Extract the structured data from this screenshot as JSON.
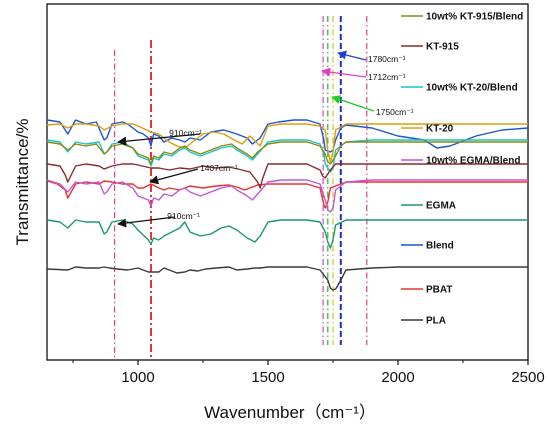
{
  "chart_data": {
    "type": "line",
    "xlabel": "Wavenumber（cm⁻¹）",
    "ylabel": "Transmittance/%",
    "xlim": [
      650,
      2500
    ],
    "x_ticks": [
      "1000",
      "1500",
      "2000",
      "2500"
    ],
    "grid": false,
    "legend_placement": "right, next to each curve",
    "series": [
      {
        "name": "PLA",
        "color": "#3a3a3a",
        "x": [
          650,
          730,
          760,
          800,
          850,
          870,
          890,
          920,
          960,
          1000,
          1040,
          1060,
          1080,
          1100,
          1130,
          1150,
          1180,
          1200,
          1230,
          1260,
          1300,
          1350,
          1380,
          1420,
          1450,
          1470,
          1500,
          1550,
          1600,
          1650,
          1700,
          1730,
          1740,
          1750,
          1760,
          1770,
          1800,
          1900,
          2000,
          2100,
          2200,
          2300,
          2400,
          2500
        ],
        "y": [
          91,
          90,
          93,
          92,
          92,
          93,
          92,
          91,
          90,
          92,
          88,
          88,
          88,
          92,
          89,
          87,
          88,
          90,
          89,
          91,
          92,
          93,
          90,
          91,
          92,
          92,
          93,
          93,
          93,
          93,
          90,
          80,
          72,
          70,
          71,
          75,
          90,
          92,
          93,
          93,
          93,
          93,
          93,
          93
        ]
      },
      {
        "name": "PBAT",
        "color": "#e8332a",
        "x": [
          650,
          690,
          720,
          730,
          760,
          800,
          850,
          870,
          900,
          940,
          980,
          1000,
          1020,
          1050,
          1080,
          1100,
          1120,
          1160,
          1200,
          1250,
          1300,
          1350,
          1380,
          1410,
          1460,
          1500,
          1550,
          1600,
          1650,
          1700,
          1715,
          1720,
          1730,
          1740,
          1800,
          1900,
          2000,
          2100,
          2200,
          2300,
          2400,
          2500
        ],
        "y": [
          179,
          176,
          170,
          162,
          176,
          178,
          176,
          179,
          178,
          176,
          176,
          172,
          172,
          176,
          172,
          170,
          172,
          170,
          174,
          172,
          174,
          175,
          173,
          170,
          175,
          176,
          176,
          176,
          176,
          172,
          155,
          152,
          158,
          172,
          178,
          178,
          178,
          178,
          178,
          178,
          178,
          178
        ]
      },
      {
        "name": "Blend",
        "color": "#1b55d6",
        "x": [
          650,
          700,
          730,
          760,
          800,
          840,
          870,
          880,
          900,
          940,
          960,
          1000,
          1020,
          1040,
          1050,
          1060,
          1080,
          1100,
          1130,
          1160,
          1180,
          1200,
          1240,
          1280,
          1330,
          1380,
          1420,
          1440,
          1470,
          1500,
          1540,
          1600,
          1650,
          1700,
          1715,
          1720,
          1740,
          1750,
          1760,
          1780,
          1800,
          1900,
          2000,
          2100,
          2150,
          2200,
          2300,
          2400,
          2500
        ],
        "y": [
          240,
          238,
          226,
          240,
          236,
          238,
          220,
          222,
          236,
          238,
          236,
          228,
          226,
          222,
          214,
          226,
          224,
          218,
          222,
          220,
          218,
          222,
          220,
          228,
          230,
          226,
          222,
          216,
          222,
          236,
          238,
          240,
          240,
          236,
          220,
          210,
          208,
          210,
          220,
          232,
          235,
          232,
          224,
          220,
          212,
          214,
          224,
          230,
          232
        ]
      },
      {
        "name": "EGMA",
        "color": "#1a9a6a",
        "x": [
          650,
          700,
          730,
          760,
          800,
          850,
          870,
          880,
          900,
          940,
          980,
          1000,
          1040,
          1050,
          1060,
          1080,
          1100,
          1130,
          1160,
          1180,
          1200,
          1240,
          1280,
          1320,
          1350,
          1380,
          1420,
          1450,
          1470,
          1500,
          1550,
          1600,
          1650,
          1700,
          1720,
          1730,
          1740,
          1750,
          1760,
          1800,
          1900,
          2000,
          2100,
          2200,
          2300,
          2400,
          2500
        ],
        "y": [
          140,
          138,
          132,
          140,
          138,
          138,
          126,
          128,
          138,
          140,
          136,
          130,
          120,
          116,
          122,
          120,
          124,
          128,
          132,
          138,
          128,
          124,
          126,
          132,
          134,
          130,
          122,
          118,
          124,
          138,
          140,
          140,
          140,
          138,
          128,
          118,
          112,
          120,
          135,
          140,
          140,
          140,
          140,
          140,
          140,
          140,
          140
        ]
      },
      {
        "name": "10wt% EGMA/Blend",
        "color": "#c257d6",
        "x": [
          650,
          700,
          730,
          760,
          800,
          850,
          870,
          880,
          900,
          940,
          980,
          1000,
          1040,
          1050,
          1060,
          1080,
          1100,
          1130,
          1160,
          1180,
          1200,
          1240,
          1280,
          1320,
          1360,
          1380,
          1420,
          1440,
          1460,
          1500,
          1550,
          1600,
          1650,
          1700,
          1720,
          1730,
          1740,
          1750,
          1760,
          1800,
          1900,
          2000,
          2100,
          2200,
          2300,
          2400,
          2500
        ],
        "y": [
          180,
          176,
          168,
          178,
          176,
          178,
          166,
          168,
          176,
          178,
          172,
          164,
          160,
          154,
          162,
          160,
          166,
          164,
          170,
          172,
          168,
          164,
          168,
          172,
          174,
          170,
          164,
          160,
          166,
          178,
          180,
          180,
          180,
          176,
          160,
          150,
          148,
          152,
          170,
          178,
          180,
          180,
          180,
          180,
          180,
          180,
          180
        ]
      },
      {
        "name": "KT-20",
        "color": "#d8a010",
        "x": [
          650,
          700,
          730,
          760,
          800,
          850,
          870,
          900,
          940,
          980,
          1000,
          1050,
          1080,
          1120,
          1150,
          1180,
          1210,
          1250,
          1290,
          1330,
          1370,
          1400,
          1430,
          1470,
          1500,
          1550,
          1600,
          1650,
          1700,
          1720,
          1730,
          1740,
          1750,
          1760,
          1800,
          1900,
          2000,
          2100,
          2200,
          2300,
          2400,
          2500
        ],
        "y": [
          235,
          236,
          232,
          236,
          236,
          234,
          230,
          234,
          236,
          236,
          234,
          228,
          226,
          218,
          214,
          212,
          218,
          226,
          228,
          226,
          220,
          216,
          224,
          214,
          234,
          236,
          236,
          236,
          234,
          230,
          210,
          198,
          208,
          230,
          236,
          236,
          236,
          236,
          236,
          236,
          236,
          236
        ]
      },
      {
        "name": "10wt% KT-20/Blend",
        "color": "#1ac4c4",
        "x": [
          650,
          700,
          730,
          760,
          800,
          850,
          870,
          880,
          900,
          940,
          980,
          1000,
          1040,
          1050,
          1060,
          1080,
          1100,
          1130,
          1160,
          1180,
          1200,
          1240,
          1280,
          1320,
          1360,
          1380,
          1420,
          1440,
          1460,
          1500,
          1550,
          1600,
          1650,
          1700,
          1715,
          1720,
          1740,
          1750,
          1760,
          1800,
          1900,
          2000,
          2100,
          2200,
          2300,
          2400,
          2500
        ],
        "y": [
          220,
          218,
          208,
          218,
          216,
          218,
          206,
          208,
          216,
          218,
          212,
          204,
          200,
          194,
          202,
          200,
          206,
          204,
          210,
          212,
          208,
          204,
          208,
          212,
          214,
          210,
          204,
          200,
          206,
          218,
          220,
          220,
          220,
          216,
          206,
          196,
          188,
          192,
          210,
          218,
          220,
          220,
          220,
          220,
          220,
          220,
          220
        ]
      },
      {
        "name": "KT-915",
        "color": "#8a2b2b",
        "x": [
          650,
          700,
          720,
          730,
          760,
          800,
          850,
          870,
          900,
          940,
          980,
          1000,
          1050,
          1080,
          1120,
          1160,
          1200,
          1250,
          1300,
          1350,
          1400,
          1430,
          1460,
          1470,
          1480,
          1500,
          1550,
          1600,
          1650,
          1700,
          1710,
          1720,
          1740,
          1760,
          1800,
          1900,
          2000,
          2100,
          2200,
          2300,
          2400,
          2500
        ],
        "y": [
          196,
          194,
          185,
          178,
          194,
          196,
          194,
          191,
          194,
          196,
          196,
          195,
          192,
          192,
          190,
          192,
          191,
          194,
          192,
          193,
          190,
          188,
          178,
          172,
          182,
          196,
          196,
          196,
          196,
          190,
          184,
          182,
          190,
          196,
          196,
          196,
          196,
          196,
          196,
          196,
          196,
          196
        ]
      },
      {
        "name": "10wt% KT-915/Blend",
        "color": "#8a8a10",
        "x": [
          650,
          700,
          730,
          760,
          800,
          840,
          870,
          880,
          900,
          940,
          980,
          1000,
          1040,
          1050,
          1060,
          1080,
          1100,
          1130,
          1160,
          1180,
          1200,
          1240,
          1280,
          1320,
          1360,
          1380,
          1420,
          1440,
          1460,
          1500,
          1550,
          1600,
          1650,
          1700,
          1720,
          1730,
          1740,
          1760,
          1780,
          1800,
          1900,
          2000,
          2100,
          2200,
          2300,
          2400,
          2500
        ],
        "y": [
          218,
          216,
          210,
          216,
          214,
          216,
          206,
          208,
          214,
          216,
          212,
          206,
          202,
          196,
          204,
          202,
          208,
          206,
          212,
          214,
          210,
          206,
          210,
          214,
          216,
          212,
          206,
          202,
          208,
          216,
          218,
          218,
          218,
          214,
          206,
          198,
          196,
          204,
          214,
          218,
          218,
          218,
          218,
          218,
          218,
          218,
          218
        ]
      }
    ],
    "reference_lines": [
      {
        "x": 910,
        "color": "#e0408a",
        "style": "dash-dot"
      },
      {
        "x": 1050,
        "color": "#e02020",
        "style": "dash-dot-bold"
      },
      {
        "x": 1712,
        "color": "#e040c0",
        "style": "dash-dot"
      },
      {
        "x": 1730,
        "color": "#22bb22",
        "style": "dash-dot"
      },
      {
        "x": 1750,
        "color": "#d4c020",
        "style": "dash-dot"
      },
      {
        "x": 1780,
        "color": "#2030c0",
        "style": "dashed"
      },
      {
        "x": 1880,
        "color": "#e0408a",
        "style": "dash-dot"
      }
    ],
    "annotations": [
      {
        "text": "910cm⁻¹",
        "arrow_color": "#111111"
      },
      {
        "text": "1407cm⁻¹",
        "arrow_color": "#111111"
      },
      {
        "text": "910cm⁻¹",
        "arrow_color": "#111111"
      },
      {
        "text": "1780cm⁻¹",
        "arrow_color": "#1f3fd0"
      },
      {
        "text": "1712cm⁻¹",
        "arrow_color": "#e040c0"
      },
      {
        "text": "1750cm⁻¹",
        "arrow_color": "#22cc22"
      }
    ]
  }
}
